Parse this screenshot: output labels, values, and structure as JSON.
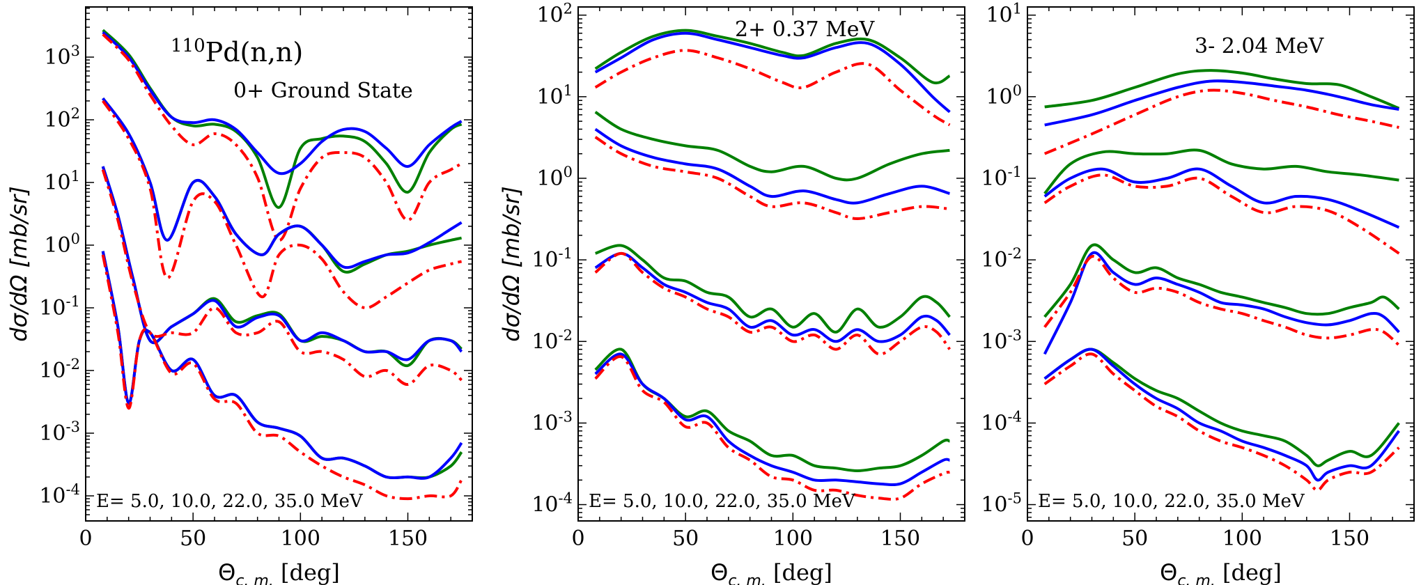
{
  "chart_data": [
    {
      "type": "line",
      "panel": "left",
      "title": "110Pd(n,n)",
      "title_sup": "110",
      "title_main": "Pd(n,n)",
      "subtitle": "0+  Ground State",
      "note": "E= 5.0, 10.0, 22.0, 35.0 MeV",
      "xlabel": "Θ",
      "xlabel_sub": "c. m.",
      "xlabel_unit": "[deg]",
      "ylabel": "dσ/dΩ [mb/sr]",
      "xlim": [
        0,
        180
      ],
      "ylim_log10": [
        -4.4,
        3.8
      ],
      "xticks": [
        0,
        50,
        100,
        150
      ],
      "yticks_log10": [
        -4,
        -3,
        -2,
        -1,
        0,
        1,
        2,
        3
      ],
      "ytick_labels": [
        "10-4",
        "10-3",
        "10-2",
        "10-1",
        "100",
        "101",
        "102",
        "103"
      ],
      "colors": {
        "blue": "#0000ff",
        "green": "#008000",
        "red": "#ff0000"
      },
      "groups": [
        {
          "energy": "5.0 MeV",
          "x": [
            8,
            20,
            30,
            40,
            50,
            60,
            70,
            80,
            90,
            100,
            110,
            120,
            130,
            140,
            150,
            160,
            170,
            175
          ],
          "blue": [
            2500,
            1000,
            300,
            110,
            90,
            100,
            70,
            30,
            14,
            20,
            45,
            70,
            65,
            35,
            18,
            40,
            75,
            95
          ],
          "green": [
            2700,
            1100,
            320,
            110,
            80,
            85,
            65,
            25,
            4,
            35,
            50,
            55,
            45,
            20,
            7,
            30,
            70,
            85
          ],
          "red": [
            2300,
            900,
            250,
            80,
            40,
            60,
            40,
            12,
            1.2,
            8,
            25,
            30,
            25,
            10,
            2.5,
            10,
            16,
            20
          ]
        },
        {
          "energy": "10.0 MeV",
          "x": [
            8,
            20,
            30,
            38,
            50,
            60,
            70,
            82,
            90,
            100,
            110,
            120,
            130,
            140,
            150,
            160,
            170,
            175
          ],
          "blue": [
            220,
            60,
            10,
            1.2,
            10,
            6,
            1.5,
            0.7,
            1.5,
            2,
            1,
            0.45,
            0.55,
            0.7,
            0.75,
            1.1,
            1.8,
            2.3
          ],
          "green": [
            220,
            60,
            10,
            1.2,
            10,
            6,
            1.5,
            0.7,
            1.5,
            2,
            1,
            0.38,
            0.5,
            0.7,
            0.8,
            1.0,
            1.2,
            1.3
          ],
          "red": [
            200,
            50,
            8,
            0.3,
            5,
            5,
            1,
            0.15,
            0.7,
            1,
            0.6,
            0.18,
            0.1,
            0.15,
            0.25,
            0.4,
            0.5,
            0.55
          ]
        },
        {
          "energy": "22.0 MeV",
          "x": [
            8,
            15,
            22,
            30,
            40,
            50,
            60,
            70,
            80,
            90,
            100,
            110,
            120,
            130,
            140,
            150,
            160,
            170,
            175
          ],
          "blue": [
            18,
            3,
            0.3,
            0.03,
            0.05,
            0.08,
            0.13,
            0.05,
            0.07,
            0.075,
            0.03,
            0.04,
            0.03,
            0.02,
            0.02,
            0.015,
            0.03,
            0.03,
            0.02
          ],
          "green": [
            18,
            3,
            0.3,
            0.03,
            0.05,
            0.08,
            0.14,
            0.06,
            0.075,
            0.08,
            0.03,
            0.035,
            0.03,
            0.02,
            0.02,
            0.012,
            0.03,
            0.03,
            0.022
          ],
          "red": [
            16,
            2.5,
            0.25,
            0.04,
            0.04,
            0.04,
            0.1,
            0.04,
            0.04,
            0.06,
            0.02,
            0.02,
            0.015,
            0.008,
            0.01,
            0.006,
            0.012,
            0.01,
            0.007
          ]
        },
        {
          "energy": "35.0 MeV",
          "x": [
            8,
            15,
            20,
            25,
            30,
            40,
            50,
            60,
            70,
            80,
            90,
            100,
            110,
            120,
            130,
            140,
            150,
            160,
            170,
            175
          ],
          "blue": [
            0.8,
            0.05,
            0.003,
            0.03,
            0.04,
            0.01,
            0.015,
            0.004,
            0.004,
            0.0015,
            0.0012,
            0.0009,
            0.0004,
            0.0004,
            0.0003,
            0.0002,
            0.0002,
            0.0002,
            0.0004,
            0.0007
          ],
          "green": [
            0.8,
            0.05,
            0.003,
            0.03,
            0.04,
            0.01,
            0.015,
            0.004,
            0.004,
            0.0015,
            0.0012,
            0.0009,
            0.0004,
            0.0004,
            0.0003,
            0.0002,
            0.0002,
            0.0002,
            0.0003,
            0.0005
          ],
          "red": [
            0.7,
            0.04,
            0.0025,
            0.03,
            0.04,
            0.009,
            0.013,
            0.0035,
            0.003,
            0.001,
            0.0009,
            0.0005,
            0.0003,
            0.0002,
            0.00015,
            0.0001,
            9e-05,
            0.0001,
            0.0001,
            0.00018
          ]
        }
      ]
    },
    {
      "type": "line",
      "panel": "middle",
      "subtitle": "2+   0.37 MeV",
      "note": "E= 5.0, 10.0, 22.0, 35.0 MeV",
      "xlabel": "Θ",
      "xlabel_sub": "c. m.",
      "xlabel_unit": "[deg]",
      "ylabel": "dσ/dΩ [mb/sr]",
      "xlim": [
        0,
        180
      ],
      "ylim_log10": [
        -4.2,
        2.1
      ],
      "xticks": [
        0,
        50,
        100,
        150
      ],
      "yticks_log10": [
        -4,
        -3,
        -2,
        -1,
        0,
        1,
        2
      ],
      "ytick_labels": [
        "10-4",
        "10-3",
        "10-2",
        "10-1",
        "100",
        "101",
        "102"
      ],
      "colors": {
        "blue": "#0000ff",
        "green": "#008000",
        "red": "#ff0000"
      },
      "groups": [
        {
          "energy": "5.0 MeV",
          "x": [
            8,
            20,
            35,
            50,
            65,
            80,
            95,
            105,
            120,
            135,
            150,
            165,
            173
          ],
          "blue": [
            20,
            30,
            50,
            60,
            50,
            40,
            32,
            30,
            40,
            45,
            25,
            10,
            6.5
          ],
          "green": [
            22,
            35,
            55,
            65,
            55,
            45,
            35,
            32,
            45,
            50,
            30,
            15,
            18
          ],
          "red": [
            13,
            20,
            30,
            37,
            30,
            22,
            15,
            13,
            20,
            25,
            12,
            6,
            4.5
          ]
        },
        {
          "energy": "10.0 MeV",
          "x": [
            8,
            20,
            35,
            50,
            65,
            80,
            90,
            105,
            120,
            130,
            145,
            160,
            173
          ],
          "blue": [
            4,
            2.5,
            1.8,
            1.5,
            1.3,
            0.8,
            0.6,
            0.7,
            0.55,
            0.5,
            0.65,
            0.8,
            0.65
          ],
          "green": [
            6.5,
            4,
            3,
            2.5,
            2.2,
            1.4,
            1.2,
            1.4,
            1.0,
            1.0,
            1.5,
            2.0,
            2.2
          ],
          "red": [
            3.2,
            2,
            1.4,
            1.2,
            1.0,
            0.6,
            0.45,
            0.5,
            0.38,
            0.32,
            0.38,
            0.45,
            0.42
          ]
        },
        {
          "energy": "22.0 MeV",
          "x": [
            8,
            20,
            30,
            40,
            50,
            60,
            70,
            80,
            90,
            100,
            110,
            120,
            130,
            140,
            150,
            160,
            167,
            173
          ],
          "blue": [
            0.08,
            0.12,
            0.08,
            0.05,
            0.04,
            0.03,
            0.025,
            0.015,
            0.018,
            0.012,
            0.014,
            0.01,
            0.014,
            0.01,
            0.012,
            0.02,
            0.018,
            0.012
          ],
          "green": [
            0.12,
            0.15,
            0.1,
            0.06,
            0.055,
            0.04,
            0.035,
            0.02,
            0.025,
            0.015,
            0.022,
            0.013,
            0.025,
            0.015,
            0.02,
            0.035,
            0.03,
            0.02
          ],
          "red": [
            0.07,
            0.12,
            0.07,
            0.045,
            0.035,
            0.025,
            0.02,
            0.013,
            0.015,
            0.01,
            0.012,
            0.008,
            0.012,
            0.007,
            0.01,
            0.015,
            0.013,
            0.008
          ]
        },
        {
          "energy": "35.0 MeV",
          "x": [
            8,
            20,
            30,
            40,
            50,
            60,
            70,
            80,
            90,
            100,
            110,
            120,
            130,
            140,
            150,
            160,
            170,
            173
          ],
          "blue": [
            0.004,
            0.007,
            0.003,
            0.002,
            0.0011,
            0.0012,
            0.0006,
            0.0004,
            0.0003,
            0.00025,
            0.0002,
            0.0002,
            0.00019,
            0.00018,
            0.00018,
            0.00025,
            0.00035,
            0.00035
          ],
          "green": [
            0.0045,
            0.008,
            0.003,
            0.002,
            0.0012,
            0.0014,
            0.0008,
            0.0006,
            0.0004,
            0.0004,
            0.0003,
            0.00028,
            0.00026,
            0.00028,
            0.0003,
            0.0004,
            0.0006,
            0.0006
          ],
          "red": [
            0.0035,
            0.0065,
            0.0025,
            0.0018,
            0.0009,
            0.001,
            0.0005,
            0.00035,
            0.00022,
            0.0002,
            0.00015,
            0.00015,
            0.00013,
            0.00012,
            0.00012,
            0.00018,
            0.00024,
            0.00025
          ]
        }
      ]
    },
    {
      "type": "line",
      "panel": "right",
      "subtitle": "3-   2.04 MeV",
      "note": "E= 5.0, 10.0, 22.0, 35.0 MeV",
      "xlabel": "Θ",
      "xlabel_sub": "c. m.",
      "xlabel_unit": "[deg]",
      "xlim": [
        0,
        180
      ],
      "ylim_log10": [
        -5.2,
        1.1
      ],
      "xticks": [
        0,
        50,
        100,
        150
      ],
      "yticks_log10": [
        -5,
        -4,
        -3,
        -2,
        -1,
        0,
        1
      ],
      "ytick_labels": [
        "10-5",
        "10-4",
        "10-3",
        "10-2",
        "10-1",
        "100",
        "101"
      ],
      "colors": {
        "blue": "#0000ff",
        "green": "#008000",
        "red": "#ff0000"
      },
      "groups": [
        {
          "energy": "5.0 MeV",
          "x": [
            8,
            30,
            50,
            70,
            85,
            100,
            115,
            130,
            145,
            160,
            173
          ],
          "blue": [
            0.45,
            0.6,
            0.9,
            1.3,
            1.55,
            1.5,
            1.35,
            1.2,
            1.0,
            0.8,
            0.7
          ],
          "green": [
            0.75,
            0.9,
            1.3,
            1.9,
            2.1,
            1.95,
            1.65,
            1.45,
            1.4,
            1.0,
            0.72
          ],
          "red": [
            0.2,
            0.35,
            0.6,
            1.0,
            1.2,
            1.1,
            0.9,
            0.75,
            0.6,
            0.5,
            0.42
          ]
        },
        {
          "energy": "10.0 MeV",
          "x": [
            8,
            20,
            35,
            50,
            65,
            80,
            95,
            110,
            125,
            140,
            155,
            173
          ],
          "blue": [
            0.06,
            0.1,
            0.13,
            0.09,
            0.1,
            0.13,
            0.08,
            0.05,
            0.06,
            0.055,
            0.04,
            0.025
          ],
          "green": [
            0.065,
            0.15,
            0.21,
            0.2,
            0.2,
            0.22,
            0.15,
            0.13,
            0.14,
            0.12,
            0.11,
            0.095
          ],
          "red": [
            0.05,
            0.08,
            0.11,
            0.08,
            0.08,
            0.1,
            0.06,
            0.038,
            0.045,
            0.04,
            0.025,
            0.012
          ]
        },
        {
          "energy": "22.0 MeV",
          "x": [
            8,
            20,
            30,
            40,
            50,
            60,
            70,
            80,
            90,
            100,
            110,
            120,
            130,
            140,
            150,
            160,
            166,
            173
          ],
          "blue": [
            0.0007,
            0.003,
            0.012,
            0.007,
            0.005,
            0.006,
            0.005,
            0.004,
            0.003,
            0.0028,
            0.0025,
            0.002,
            0.0017,
            0.0016,
            0.0018,
            0.0022,
            0.002,
            0.0013
          ],
          "green": [
            0.002,
            0.005,
            0.015,
            0.01,
            0.007,
            0.008,
            0.006,
            0.005,
            0.004,
            0.0035,
            0.003,
            0.0026,
            0.0022,
            0.0022,
            0.0026,
            0.003,
            0.0035,
            0.0025
          ],
          "red": [
            0.0015,
            0.004,
            0.011,
            0.006,
            0.004,
            0.0045,
            0.004,
            0.003,
            0.0025,
            0.0022,
            0.0018,
            0.0015,
            0.0012,
            0.0011,
            0.0012,
            0.0014,
            0.0013,
            0.0009
          ]
        },
        {
          "energy": "35.0 MeV",
          "x": [
            8,
            20,
            30,
            40,
            50,
            60,
            70,
            80,
            90,
            100,
            110,
            120,
            130,
            135,
            140,
            150,
            160,
            173
          ],
          "blue": [
            0.00035,
            0.0006,
            0.0008,
            0.0005,
            0.0003,
            0.0002,
            0.00015,
            0.0001,
            8e-05,
            6e-05,
            5e-05,
            4e-05,
            3e-05,
            2e-05,
            2.5e-05,
            3e-05,
            3e-05,
            8e-05
          ],
          "green": [
            0.00035,
            0.0006,
            0.0008,
            0.00055,
            0.00035,
            0.00025,
            0.0002,
            0.00014,
            0.0001,
            8e-05,
            7e-05,
            6e-05,
            4e-05,
            3e-05,
            3.5e-05,
            4.5e-05,
            4e-05,
            0.0001
          ],
          "red": [
            0.0003,
            0.0005,
            0.0007,
            0.0004,
            0.00025,
            0.00016,
            0.00012,
            8e-05,
            6e-05,
            5e-05,
            4e-05,
            3e-05,
            2e-05,
            1.5e-05,
            2e-05,
            2.5e-05,
            2.5e-05,
            5e-05
          ]
        }
      ]
    }
  ]
}
